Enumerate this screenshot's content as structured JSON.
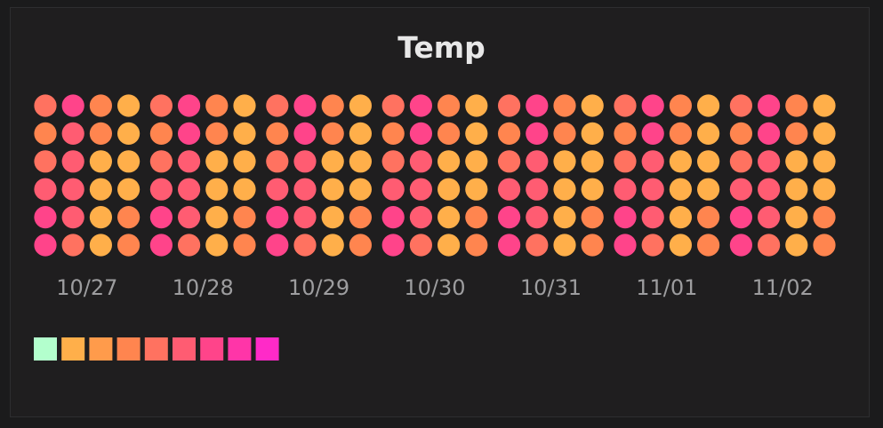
{
  "chart_data": {
    "type": "heatmap",
    "title": "Temp",
    "xlabel": "",
    "ylabel": "",
    "categories": [
      "10/27",
      "10/28",
      "10/29",
      "10/30",
      "10/31",
      "11/01",
      "11/02"
    ],
    "bins_per_day": 4,
    "rows_per_column": 6,
    "palette": [
      "#b3ffcd",
      "#ffaf4a",
      "#ff9b4b",
      "#ff854f",
      "#ff7260",
      "#ff5c72",
      "#ff448a",
      "#ff35a8",
      "#ff2ac8"
    ],
    "days": [
      [
        [
          4,
          6,
          3,
          1
        ],
        [
          3,
          5,
          3,
          1
        ],
        [
          4,
          5,
          1,
          1
        ],
        [
          5,
          5,
          1,
          1
        ],
        [
          6,
          5,
          1,
          3
        ],
        [
          6,
          4,
          1,
          3
        ]
      ],
      [
        [
          4,
          6,
          3,
          1
        ],
        [
          3,
          6,
          3,
          1
        ],
        [
          4,
          5,
          1,
          1
        ],
        [
          5,
          5,
          1,
          1
        ],
        [
          6,
          5,
          1,
          3
        ],
        [
          6,
          4,
          1,
          3
        ]
      ],
      [
        [
          4,
          6,
          3,
          1
        ],
        [
          3,
          6,
          3,
          1
        ],
        [
          4,
          5,
          1,
          1
        ],
        [
          5,
          5,
          1,
          1
        ],
        [
          6,
          5,
          1,
          3
        ],
        [
          6,
          4,
          1,
          3
        ]
      ],
      [
        [
          4,
          6,
          3,
          1
        ],
        [
          3,
          6,
          3,
          1
        ],
        [
          4,
          5,
          1,
          1
        ],
        [
          5,
          5,
          1,
          1
        ],
        [
          6,
          5,
          1,
          3
        ],
        [
          6,
          4,
          1,
          3
        ]
      ],
      [
        [
          4,
          6,
          3,
          1
        ],
        [
          3,
          6,
          3,
          1
        ],
        [
          4,
          5,
          1,
          1
        ],
        [
          5,
          5,
          1,
          1
        ],
        [
          6,
          5,
          1,
          3
        ],
        [
          6,
          4,
          1,
          3
        ]
      ],
      [
        [
          4,
          6,
          3,
          1
        ],
        [
          3,
          6,
          3,
          1
        ],
        [
          4,
          5,
          1,
          1
        ],
        [
          5,
          5,
          1,
          1
        ],
        [
          6,
          5,
          1,
          3
        ],
        [
          6,
          4,
          1,
          3
        ]
      ],
      [
        [
          4,
          6,
          3,
          1
        ],
        [
          3,
          6,
          3,
          1
        ],
        [
          4,
          5,
          1,
          1
        ],
        [
          5,
          5,
          1,
          1
        ],
        [
          6,
          5,
          1,
          3
        ],
        [
          6,
          4,
          1,
          3
        ]
      ]
    ],
    "legend_position": "bottom-left",
    "grid": false
  }
}
